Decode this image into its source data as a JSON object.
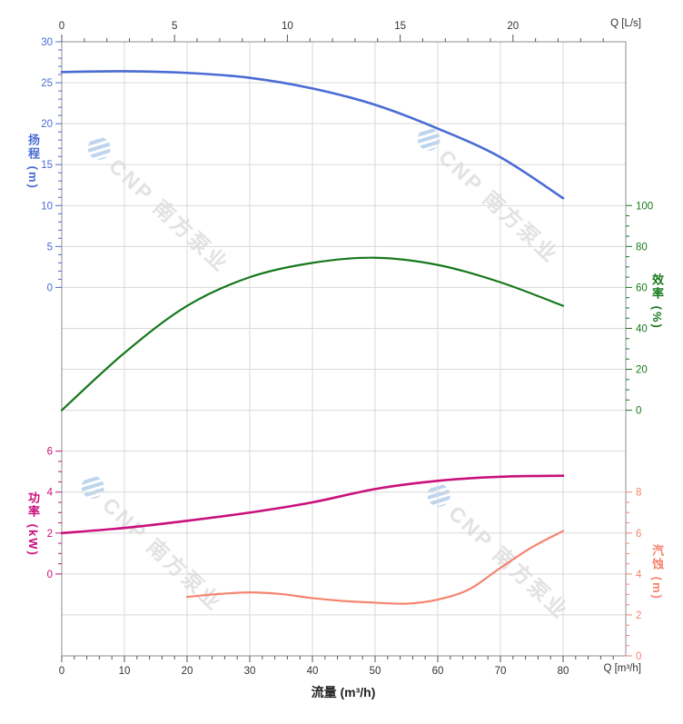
{
  "watermark": {
    "text": "CNP 南方泵业",
    "logo": "cnp-logo",
    "text_color": "#e2e2e2",
    "logo_color": "#bdd5ee"
  },
  "style": {
    "background": "#ffffff",
    "grid_color": "#d9d9d9",
    "border_color": "#a0a0a0",
    "flow_tick_color": "#333333"
  },
  "chart_data": {
    "type": "line",
    "title": "",
    "grid": true,
    "legend": "none",
    "top_axis": {
      "unit_label": "Q [L/s]",
      "ticks": [
        0,
        5,
        10,
        15,
        20
      ],
      "minor_step": 1,
      "minor_max": 24,
      "max": 25
    },
    "bottom_axis": {
      "unit_label": "Q [m³/h]",
      "axis_title": "流量 (m³/h)",
      "ticks": [
        0,
        10,
        20,
        30,
        40,
        50,
        60,
        70,
        80
      ],
      "minor_step": 2,
      "minor_max": 88,
      "max": 90
    },
    "y_axes": {
      "head": {
        "title": "扬程 (m)",
        "side": "left",
        "color": "#4a6cd4",
        "ticks": [
          30,
          25,
          20,
          15,
          10,
          5,
          0
        ],
        "minor_step": 1,
        "top_value": 30,
        "bottom_value": 0,
        "top_row": 0,
        "bottom_row": 6
      },
      "efficiency": {
        "title": "效率 (%)",
        "side": "right",
        "color": "#17781c",
        "ticks": [
          100,
          80,
          60,
          40,
          20,
          0
        ],
        "minor_step": 5,
        "top_value": 100,
        "bottom_value": 0,
        "top_row": 4,
        "bottom_row": 9
      },
      "power": {
        "title": "功率 (kW)",
        "side": "left",
        "color": "#c9107c",
        "ticks": [
          6,
          4,
          2,
          0
        ],
        "minor_step": 0.5,
        "top_value": 6,
        "bottom_value": 0,
        "top_row": 10,
        "bottom_row": 13
      },
      "npsh": {
        "title": "汽蚀 (m)",
        "side": "right",
        "color": "#f5846f",
        "ticks": [
          8,
          6,
          4,
          2,
          0
        ],
        "minor_step": 0.5,
        "top_value": 8,
        "bottom_value": 0,
        "top_row": 11,
        "bottom_row": 15
      }
    },
    "series": [
      {
        "name": "head-curve",
        "axis": "head",
        "color": "#4a6cd4",
        "width": 2.6,
        "x": [
          0,
          10,
          20,
          30,
          40,
          50,
          60,
          70,
          80
        ],
        "y": [
          26.3,
          26.4,
          26.2,
          25.6,
          24.3,
          22.3,
          19.4,
          15.9,
          10.9
        ]
      },
      {
        "name": "efficiency-curve",
        "axis": "efficiency",
        "color": "#17781c",
        "width": 2.2,
        "x": [
          0,
          10,
          20,
          30,
          40,
          50,
          60,
          70,
          80
        ],
        "y": [
          0,
          28,
          51,
          65,
          72,
          74.5,
          71,
          62.5,
          51
        ]
      },
      {
        "name": "power-curve",
        "axis": "power",
        "color": "#c9107c",
        "width": 2.6,
        "x": [
          0,
          10,
          20,
          30,
          40,
          50,
          60,
          70,
          80
        ],
        "y": [
          2.0,
          2.25,
          2.6,
          3.0,
          3.5,
          4.15,
          4.55,
          4.75,
          4.8
        ]
      },
      {
        "name": "npsh-curve",
        "axis": "npsh",
        "color": "#f5846f",
        "width": 2.2,
        "x": [
          20,
          25,
          30,
          35,
          40,
          45,
          50,
          55,
          60,
          65,
          70,
          75,
          80
        ],
        "y": [
          2.88,
          3.02,
          3.1,
          3.02,
          2.82,
          2.68,
          2.6,
          2.55,
          2.75,
          3.25,
          4.3,
          5.3,
          6.1
        ]
      }
    ]
  }
}
